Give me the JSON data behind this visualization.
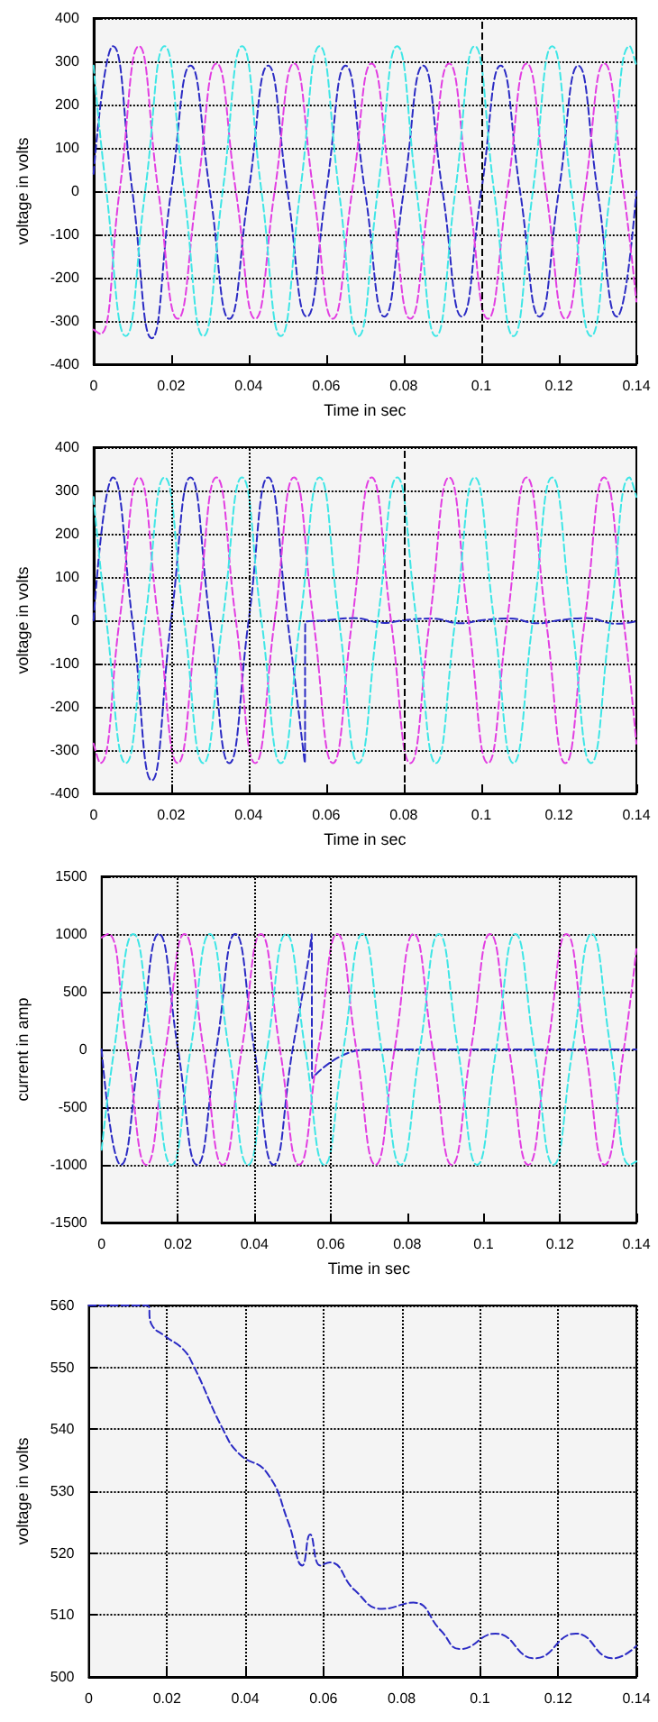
{
  "chart_data": [
    {
      "type": "line",
      "xlabel": "Time in sec",
      "ylabel": "voltage in volts",
      "xlim": [
        0,
        0.14
      ],
      "xticks": [
        0,
        0.02,
        0.04,
        0.06,
        0.08,
        0.1,
        0.12,
        0.14
      ],
      "ylim": [
        -400,
        400
      ],
      "yticks": [
        -400,
        -300,
        -200,
        -100,
        0,
        100,
        200,
        300,
        400
      ],
      "grid": "y",
      "marker": "none",
      "line_style": "dashed",
      "ref_lines": [
        {
          "axis": "x",
          "value": 0.1,
          "color": "#000000",
          "line_style": "dashed"
        }
      ],
      "series": [
        {
          "color": "#2b2bc4",
          "x": [
            0,
            0.005,
            0.01,
            0.015,
            0.02,
            0.025,
            0.03,
            0.035,
            0.04,
            0.045,
            0.05,
            0.055,
            0.06,
            0.065,
            0.07,
            0.075,
            0.08,
            0.085,
            0.09,
            0.095,
            0.1,
            0.105,
            0.11,
            0.115,
            0.12,
            0.125,
            0.13,
            0.135,
            0.14
          ],
          "values": [
            40,
            335,
            0,
            -340,
            0,
            290,
            0,
            -295,
            0,
            290,
            0,
            -290,
            0,
            290,
            0,
            -290,
            0,
            290,
            0,
            -290,
            0,
            290,
            0,
            -290,
            0,
            290,
            0,
            -290,
            0
          ]
        },
        {
          "color": "#e23ee2",
          "x": [
            0,
            0.0017,
            0.0067,
            0.0117,
            0.0167,
            0.0217,
            0.0267,
            0.0317,
            0.0367,
            0.0417,
            0.0467,
            0.0517,
            0.0567,
            0.0617,
            0.0667,
            0.0717,
            0.0767,
            0.0817,
            0.0867,
            0.0917,
            0.0967,
            0.1017,
            0.1067,
            0.1117,
            0.1167,
            0.1217,
            0.1267,
            0.1317,
            0.1367,
            0.14
          ],
          "values": [
            -320,
            -330,
            0,
            335,
            0,
            -295,
            0,
            295,
            0,
            -295,
            0,
            295,
            0,
            -295,
            0,
            295,
            0,
            -295,
            0,
            295,
            0,
            -295,
            0,
            295,
            0,
            -295,
            0,
            295,
            0,
            -255
          ]
        },
        {
          "color": "#3ee6e6",
          "x": [
            0,
            0.0033,
            0.0083,
            0.0133,
            0.0183,
            0.0233,
            0.0283,
            0.0333,
            0.0383,
            0.0433,
            0.0483,
            0.0533,
            0.0583,
            0.0633,
            0.0683,
            0.0733,
            0.0783,
            0.0833,
            0.0883,
            0.0933,
            0.0983,
            0.1033,
            0.1083,
            0.1133,
            0.1183,
            0.1233,
            0.1283,
            0.1333,
            0.1383,
            0.14
          ],
          "values": [
            290,
            0,
            -335,
            0,
            335,
            0,
            -335,
            0,
            335,
            0,
            -335,
            0,
            335,
            0,
            -335,
            0,
            335,
            0,
            -335,
            0,
            335,
            0,
            -335,
            0,
            335,
            0,
            -335,
            0,
            335,
            290
          ]
        }
      ]
    },
    {
      "type": "line",
      "xlabel": "Time in sec",
      "ylabel": "voltage in volts",
      "xlim": [
        0,
        0.14
      ],
      "xticks": [
        0,
        0.02,
        0.04,
        0.06,
        0.08,
        0.1,
        0.12,
        0.14
      ],
      "ylim": [
        -400,
        400
      ],
      "yticks": [
        -400,
        -300,
        -200,
        -100,
        0,
        100,
        200,
        300,
        400
      ],
      "grid": "y",
      "marker": "none",
      "line_style": "dashed",
      "ref_lines": [
        {
          "axis": "x",
          "value": 0.02,
          "color": "#000000",
          "line_style": "dotted"
        },
        {
          "axis": "x",
          "value": 0.04,
          "color": "#000000",
          "line_style": "dotted"
        },
        {
          "axis": "x",
          "value": 0.08,
          "color": "#000000",
          "line_style": "dashed"
        }
      ],
      "series": [
        {
          "color": "#2b2bc4",
          "x": [
            0,
            0.005,
            0.01,
            0.015,
            0.02,
            0.025,
            0.03,
            0.035,
            0.04,
            0.045,
            0.05,
            0.0545,
            0.0546,
            0.06,
            0.067,
            0.075,
            0.08,
            0.087,
            0.095,
            0.1,
            0.107,
            0.115,
            0.12,
            0.127,
            0.135,
            0.14
          ],
          "values": [
            0,
            330,
            0,
            -370,
            0,
            330,
            0,
            -330,
            0,
            330,
            0,
            -330,
            -5,
            0,
            5,
            -6,
            0,
            4,
            -7,
            0,
            4,
            -7,
            0,
            5,
            -8,
            -2
          ]
        },
        {
          "color": "#e23ee2",
          "x": [
            0,
            0.0017,
            0.0067,
            0.0117,
            0.0167,
            0.0217,
            0.0267,
            0.0317,
            0.0367,
            0.0417,
            0.0467,
            0.0517,
            0.0567,
            0.0617,
            0.0667,
            0.0717,
            0.0767,
            0.0817,
            0.0867,
            0.0917,
            0.0967,
            0.1017,
            0.1067,
            0.1117,
            0.1167,
            0.1217,
            0.1267,
            0.1317,
            0.1367,
            0.14
          ],
          "values": [
            -285,
            -330,
            0,
            330,
            0,
            -330,
            0,
            330,
            0,
            -330,
            0,
            330,
            0,
            -330,
            0,
            330,
            0,
            -330,
            0,
            330,
            0,
            -330,
            0,
            330,
            0,
            -330,
            0,
            330,
            0,
            -285
          ]
        },
        {
          "color": "#3ee6e6",
          "x": [
            0,
            0.0033,
            0.0083,
            0.0133,
            0.0183,
            0.0233,
            0.0283,
            0.0333,
            0.0383,
            0.0433,
            0.0483,
            0.0533,
            0.0583,
            0.0633,
            0.0683,
            0.0733,
            0.0783,
            0.0833,
            0.0883,
            0.0933,
            0.0983,
            0.1033,
            0.1083,
            0.1133,
            0.1183,
            0.1233,
            0.1283,
            0.1333,
            0.1383,
            0.14
          ],
          "values": [
            285,
            0,
            -330,
            0,
            330,
            0,
            -330,
            0,
            330,
            0,
            -330,
            0,
            330,
            0,
            -330,
            0,
            330,
            0,
            -330,
            0,
            330,
            0,
            -330,
            0,
            330,
            0,
            -330,
            0,
            330,
            285
          ]
        }
      ]
    },
    {
      "type": "line",
      "xlabel": "Time in sec",
      "ylabel": "current in amp",
      "xlim": [
        0,
        0.14
      ],
      "xticks": [
        0,
        0.02,
        0.04,
        0.06,
        0.08,
        0.1,
        0.12,
        0.14
      ],
      "ylim": [
        -1500,
        1500
      ],
      "yticks": [
        -1500,
        -1000,
        -500,
        0,
        500,
        1000,
        1500
      ],
      "grid": "y",
      "marker": "none",
      "line_style": "dashed",
      "ref_lines": [
        {
          "axis": "x",
          "value": 0.02,
          "color": "#000000",
          "line_style": "dotted"
        },
        {
          "axis": "x",
          "value": 0.04,
          "color": "#000000",
          "line_style": "dotted"
        },
        {
          "axis": "x",
          "value": 0.06,
          "color": "#000000",
          "line_style": "dotted"
        },
        {
          "axis": "x",
          "value": 0.12,
          "color": "#000000",
          "line_style": "dotted"
        }
      ],
      "series": [
        {
          "color": "#2b2bc4",
          "x": [
            0,
            0.005,
            0.01,
            0.015,
            0.02,
            0.025,
            0.03,
            0.035,
            0.04,
            0.045,
            0.05,
            0.054,
            0.055,
            0.0551,
            0.0695,
            0.14
          ],
          "values": [
            0,
            -1000,
            0,
            1000,
            0,
            -1000,
            0,
            1000,
            0,
            -1000,
            0,
            750,
            1000,
            -250,
            0,
            0
          ]
        },
        {
          "color": "#e23ee2",
          "x": [
            0,
            0.0017,
            0.0067,
            0.0117,
            0.0167,
            0.0217,
            0.0267,
            0.0317,
            0.0367,
            0.0417,
            0.0467,
            0.0517,
            0.0567,
            0.0617,
            0.0667,
            0.0717,
            0.0767,
            0.0817,
            0.0867,
            0.0917,
            0.0967,
            0.1017,
            0.1067,
            0.1117,
            0.1167,
            0.1217,
            0.1267,
            0.1317,
            0.1367,
            0.14
          ],
          "values": [
            970,
            1000,
            0,
            -1000,
            0,
            1000,
            0,
            -1000,
            0,
            1000,
            0,
            -1000,
            0,
            1000,
            0,
            -1000,
            0,
            1000,
            0,
            -1000,
            0,
            1000,
            0,
            -1000,
            0,
            1000,
            0,
            -1000,
            0,
            870
          ]
        },
        {
          "color": "#3ee6e6",
          "x": [
            0,
            0.0033,
            0.0083,
            0.0133,
            0.0183,
            0.0233,
            0.0283,
            0.0333,
            0.0383,
            0.0433,
            0.0483,
            0.0533,
            0.0583,
            0.0633,
            0.0683,
            0.0733,
            0.0783,
            0.0833,
            0.0883,
            0.0933,
            0.0983,
            0.1033,
            0.1083,
            0.1133,
            0.1183,
            0.1233,
            0.1283,
            0.1333,
            0.1383,
            0.14
          ],
          "values": [
            -870,
            0,
            1000,
            0,
            -1000,
            0,
            1000,
            0,
            -1000,
            0,
            1000,
            0,
            -1000,
            0,
            1000,
            0,
            -1000,
            0,
            1000,
            0,
            -1000,
            0,
            1000,
            0,
            -1000,
            0,
            1000,
            0,
            -1000,
            -970
          ]
        }
      ]
    },
    {
      "type": "line",
      "xlabel": null,
      "ylabel": "voltage in volts",
      "xlim": [
        0,
        0.14
      ],
      "xticks": [
        0,
        0.02,
        0.04,
        0.06,
        0.08,
        0.1,
        0.12,
        0.14
      ],
      "ylim": [
        500,
        560
      ],
      "yticks": [
        500,
        510,
        520,
        530,
        540,
        550,
        560
      ],
      "grid": true,
      "marker": "none",
      "line_style": "dashed",
      "series": [
        {
          "color": "#2b2bc4",
          "x": [
            0,
            0.015,
            0.016,
            0.0196,
            0.024,
            0.0266,
            0.0343,
            0.0385,
            0.0455,
            0.051,
            0.0546,
            0.0566,
            0.0592,
            0.0616,
            0.068,
            0.075,
            0.083,
            0.09,
            0.095,
            0.104,
            0.114,
            0.1245,
            0.134,
            0.14
          ],
          "values": [
            560,
            560,
            557,
            555,
            553,
            550.5,
            540,
            536,
            533,
            525,
            518,
            523,
            518,
            518.5,
            514,
            511,
            512,
            507.5,
            504.5,
            507,
            503,
            507,
            503,
            505
          ]
        }
      ]
    }
  ]
}
